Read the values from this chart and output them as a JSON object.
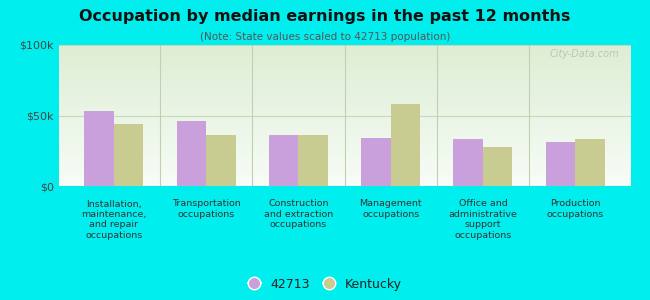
{
  "title": "Occupation by median earnings in the past 12 months",
  "subtitle": "(Note: State values scaled to 42713 population)",
  "categories": [
    "Installation,\nmaintenance,\nand repair\noccupations",
    "Transportation\noccupations",
    "Construction\nand extraction\noccupations",
    "Management\noccupations",
    "Office and\nadministrative\nsupport\noccupations",
    "Production\noccupations"
  ],
  "values_42713": [
    53000,
    46000,
    36000,
    34000,
    33000,
    31000
  ],
  "values_kentucky": [
    44000,
    36000,
    36000,
    58000,
    28000,
    33000
  ],
  "color_42713": "#c9a0dc",
  "color_kentucky": "#c8cc90",
  "background_color": "#00eeee",
  "ylim": [
    0,
    100000
  ],
  "ytick_labels": [
    "$0",
    "$50k",
    "$100k"
  ],
  "bar_width": 0.32,
  "legend_label_42713": "42713",
  "legend_label_kentucky": "Kentucky",
  "watermark": "City-Data.com",
  "plot_bg_color_top": "#ddeedd",
  "plot_bg_color_bottom": "#f8fff8",
  "divider_color": "#c0d0b0",
  "grid_color": "#c8d8b8"
}
